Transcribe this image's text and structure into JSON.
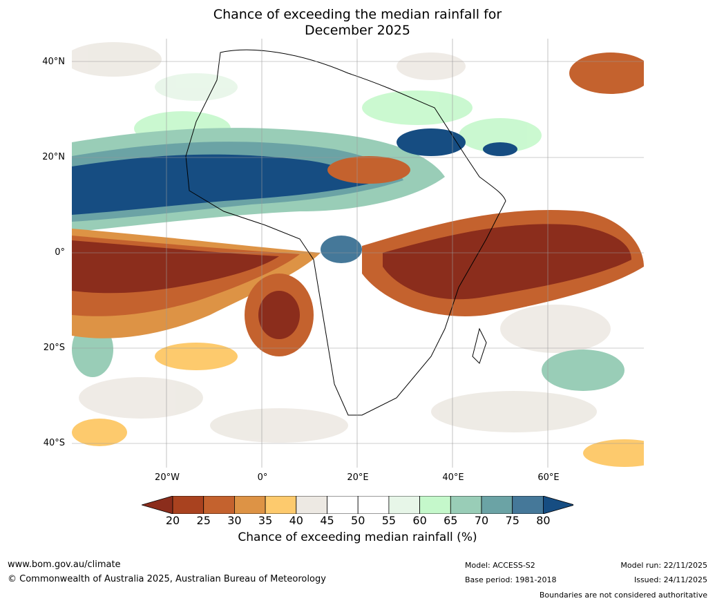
{
  "title": {
    "line1": "Chance of exceeding the median rainfall for",
    "line2": "December 2025"
  },
  "map": {
    "lat_labels": [
      "40°N",
      "20°N",
      "0°",
      "20°S",
      "40°S"
    ],
    "lon_labels": [
      "20°W",
      "0°",
      "20°E",
      "40°E",
      "60°E"
    ],
    "extent": {
      "lon_min": -40,
      "lon_max": 80,
      "lat_min": -45,
      "lat_max": 45
    }
  },
  "colorbar": {
    "ticks": [
      "20",
      "25",
      "30",
      "35",
      "40",
      "45",
      "50",
      "55",
      "60",
      "65",
      "70",
      "75",
      "80"
    ],
    "colors": [
      "#8b2d1c",
      "#a9421f",
      "#c4622e",
      "#dd9345",
      "#fdca6d",
      "#ede9e3",
      "#ffffff",
      "#ffffff",
      "#e7f6e8",
      "#c5f8cb",
      "#99cdb7",
      "#6ba3a5",
      "#457899",
      "#164d82"
    ],
    "label": "Chance of exceeding median rainfall (%)"
  },
  "footer": {
    "website": "www.bom.gov.au/climate",
    "copyright": "© Commonwealth of Australia 2025, Australian Bureau of Meteorology",
    "model": "Model: ACCESS-S2",
    "base_period": "Base period: 1981-2018",
    "model_run": "Model run: 22/11/2025",
    "issued": "Issued: 24/11/2025",
    "disclaimer": "Boundaries are not considered authoritative"
  }
}
